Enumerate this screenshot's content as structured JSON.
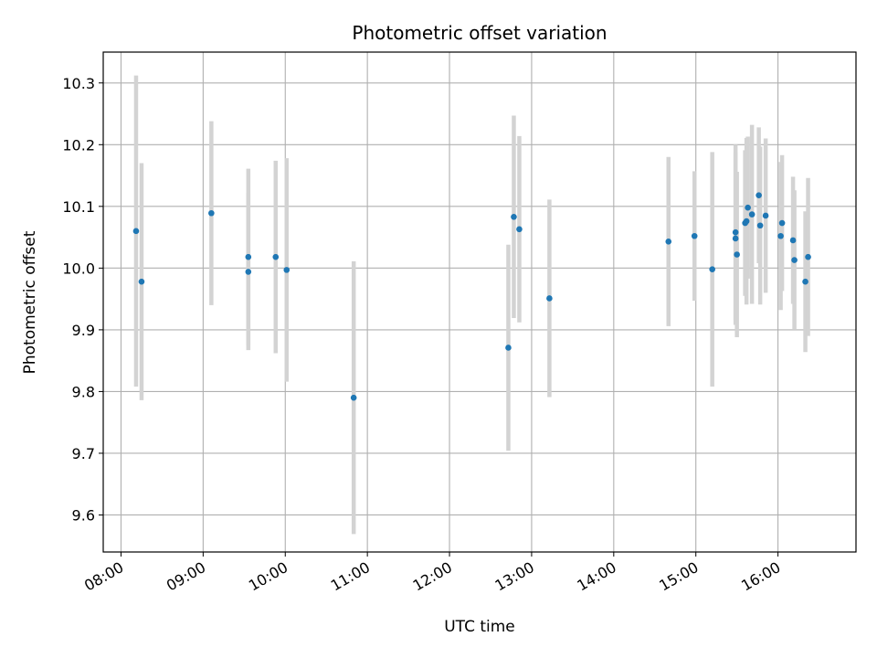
{
  "chart_data": {
    "type": "scatter",
    "title": "Photometric offset variation",
    "xlabel": "UTC time",
    "ylabel": "Photometric offset",
    "x_ticks": [
      "08:00",
      "09:00",
      "10:00",
      "11:00",
      "12:00",
      "13:00",
      "14:00",
      "15:00",
      "16:00"
    ],
    "y_ticks": [
      "9.6",
      "9.7",
      "9.8",
      "9.9",
      "10.0",
      "10.1",
      "10.2",
      "10.3"
    ],
    "xlim": [
      "07:47",
      "16:57"
    ],
    "ylim": [
      9.54,
      10.35
    ],
    "grid": true,
    "marker_color": "#1f77b4",
    "errorbar_color": "#d3d3d3",
    "points": [
      {
        "x": "08:11",
        "y": 10.06,
        "err": 0.252
      },
      {
        "x": "08:15",
        "y": 9.978,
        "err": 0.192
      },
      {
        "x": "09:06",
        "y": 10.089,
        "err": 0.149
      },
      {
        "x": "09:33",
        "y": 10.018,
        "err": 0.143
      },
      {
        "x": "09:33",
        "y": 9.994,
        "err": 0.127
      },
      {
        "x": "09:53",
        "y": 10.018,
        "err": 0.156
      },
      {
        "x": "10:01",
        "y": 9.997,
        "err": 0.181
      },
      {
        "x": "10:50",
        "y": 9.79,
        "err": 0.221
      },
      {
        "x": "12:43",
        "y": 9.871,
        "err": 0.167
      },
      {
        "x": "12:47",
        "y": 10.083,
        "err": 0.164
      },
      {
        "x": "12:51",
        "y": 10.063,
        "err": 0.151
      },
      {
        "x": "13:13",
        "y": 9.951,
        "err": 0.16
      },
      {
        "x": "14:40",
        "y": 10.043,
        "err": 0.137
      },
      {
        "x": "14:59",
        "y": 10.052,
        "err": 0.105
      },
      {
        "x": "15:12",
        "y": 9.998,
        "err": 0.19
      },
      {
        "x": "15:29",
        "y": 10.048,
        "err": 0.14
      },
      {
        "x": "15:29",
        "y": 10.058,
        "err": 0.142
      },
      {
        "x": "15:30",
        "y": 10.022,
        "err": 0.134
      },
      {
        "x": "15:36",
        "y": 10.073,
        "err": 0.118
      },
      {
        "x": "15:37",
        "y": 10.076,
        "err": 0.135
      },
      {
        "x": "15:38",
        "y": 10.098,
        "err": 0.115
      },
      {
        "x": "15:41",
        "y": 10.087,
        "err": 0.145
      },
      {
        "x": "15:46",
        "y": 10.118,
        "err": 0.11
      },
      {
        "x": "15:47",
        "y": 10.069,
        "err": 0.128
      },
      {
        "x": "15:51",
        "y": 10.085,
        "err": 0.125
      },
      {
        "x": "16:02",
        "y": 10.052,
        "err": 0.12
      },
      {
        "x": "16:03",
        "y": 10.073,
        "err": 0.11
      },
      {
        "x": "16:11",
        "y": 10.045,
        "err": 0.103
      },
      {
        "x": "16:12",
        "y": 10.013,
        "err": 0.113
      },
      {
        "x": "16:20",
        "y": 9.978,
        "err": 0.114
      },
      {
        "x": "16:22",
        "y": 10.018,
        "err": 0.128
      }
    ]
  }
}
